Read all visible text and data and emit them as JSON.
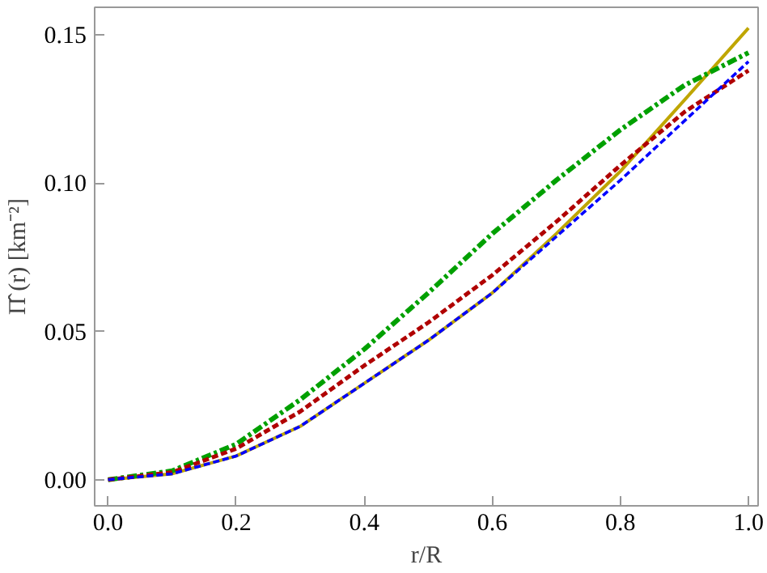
{
  "chart_data": {
    "type": "line",
    "xlabel": "r/R",
    "ylabel": "Π̂ (r) [km⁻²]",
    "x": [
      0,
      0.1,
      0.2,
      0.3,
      0.4,
      0.5,
      0.6,
      0.7,
      0.8,
      0.9,
      1.0
    ],
    "xlim": [
      -0.021,
      1.015
    ],
    "ylim": [
      -0.0088,
      0.1593
    ],
    "xticks": [
      {
        "value": 0,
        "label": "0.0"
      },
      {
        "value": 0.2,
        "label": "0.2"
      },
      {
        "value": 0.4,
        "label": "0.4"
      },
      {
        "value": 0.6,
        "label": "0.6"
      },
      {
        "value": 0.8,
        "label": "0.8"
      },
      {
        "value": 1.0,
        "label": "1.0"
      }
    ],
    "yticks": [
      {
        "value": 0,
        "label": "0.00"
      },
      {
        "value": 0.05,
        "label": "0.05"
      },
      {
        "value": 0.1,
        "label": "0.10"
      },
      {
        "value": 0.15,
        "label": "0.15"
      }
    ],
    "grid": false,
    "series": [
      {
        "color": "#bfa600",
        "line_style": "solid",
        "values": [
          0,
          0.002,
          0.008,
          0.018,
          0.0325,
          0.047,
          0.063,
          0.083,
          0.104,
          0.128,
          0.1523
        ]
      },
      {
        "color": "#0000ff",
        "line_style": "dashed",
        "values": [
          0,
          0.002,
          0.008,
          0.018,
          0.0325,
          0.047,
          0.063,
          0.082,
          0.101,
          0.121,
          0.141
        ]
      },
      {
        "color": "#b00000",
        "line_style": "dashed",
        "values": [
          0,
          0.0025,
          0.0105,
          0.023,
          0.0385,
          0.053,
          0.069,
          0.087,
          0.106,
          0.124,
          0.138
        ]
      },
      {
        "color": "#00a000",
        "line_style": "dashdot",
        "values": [
          0,
          0.003,
          0.012,
          0.027,
          0.044,
          0.063,
          0.083,
          0.101,
          0.118,
          0.133,
          0.144
        ]
      }
    ]
  }
}
